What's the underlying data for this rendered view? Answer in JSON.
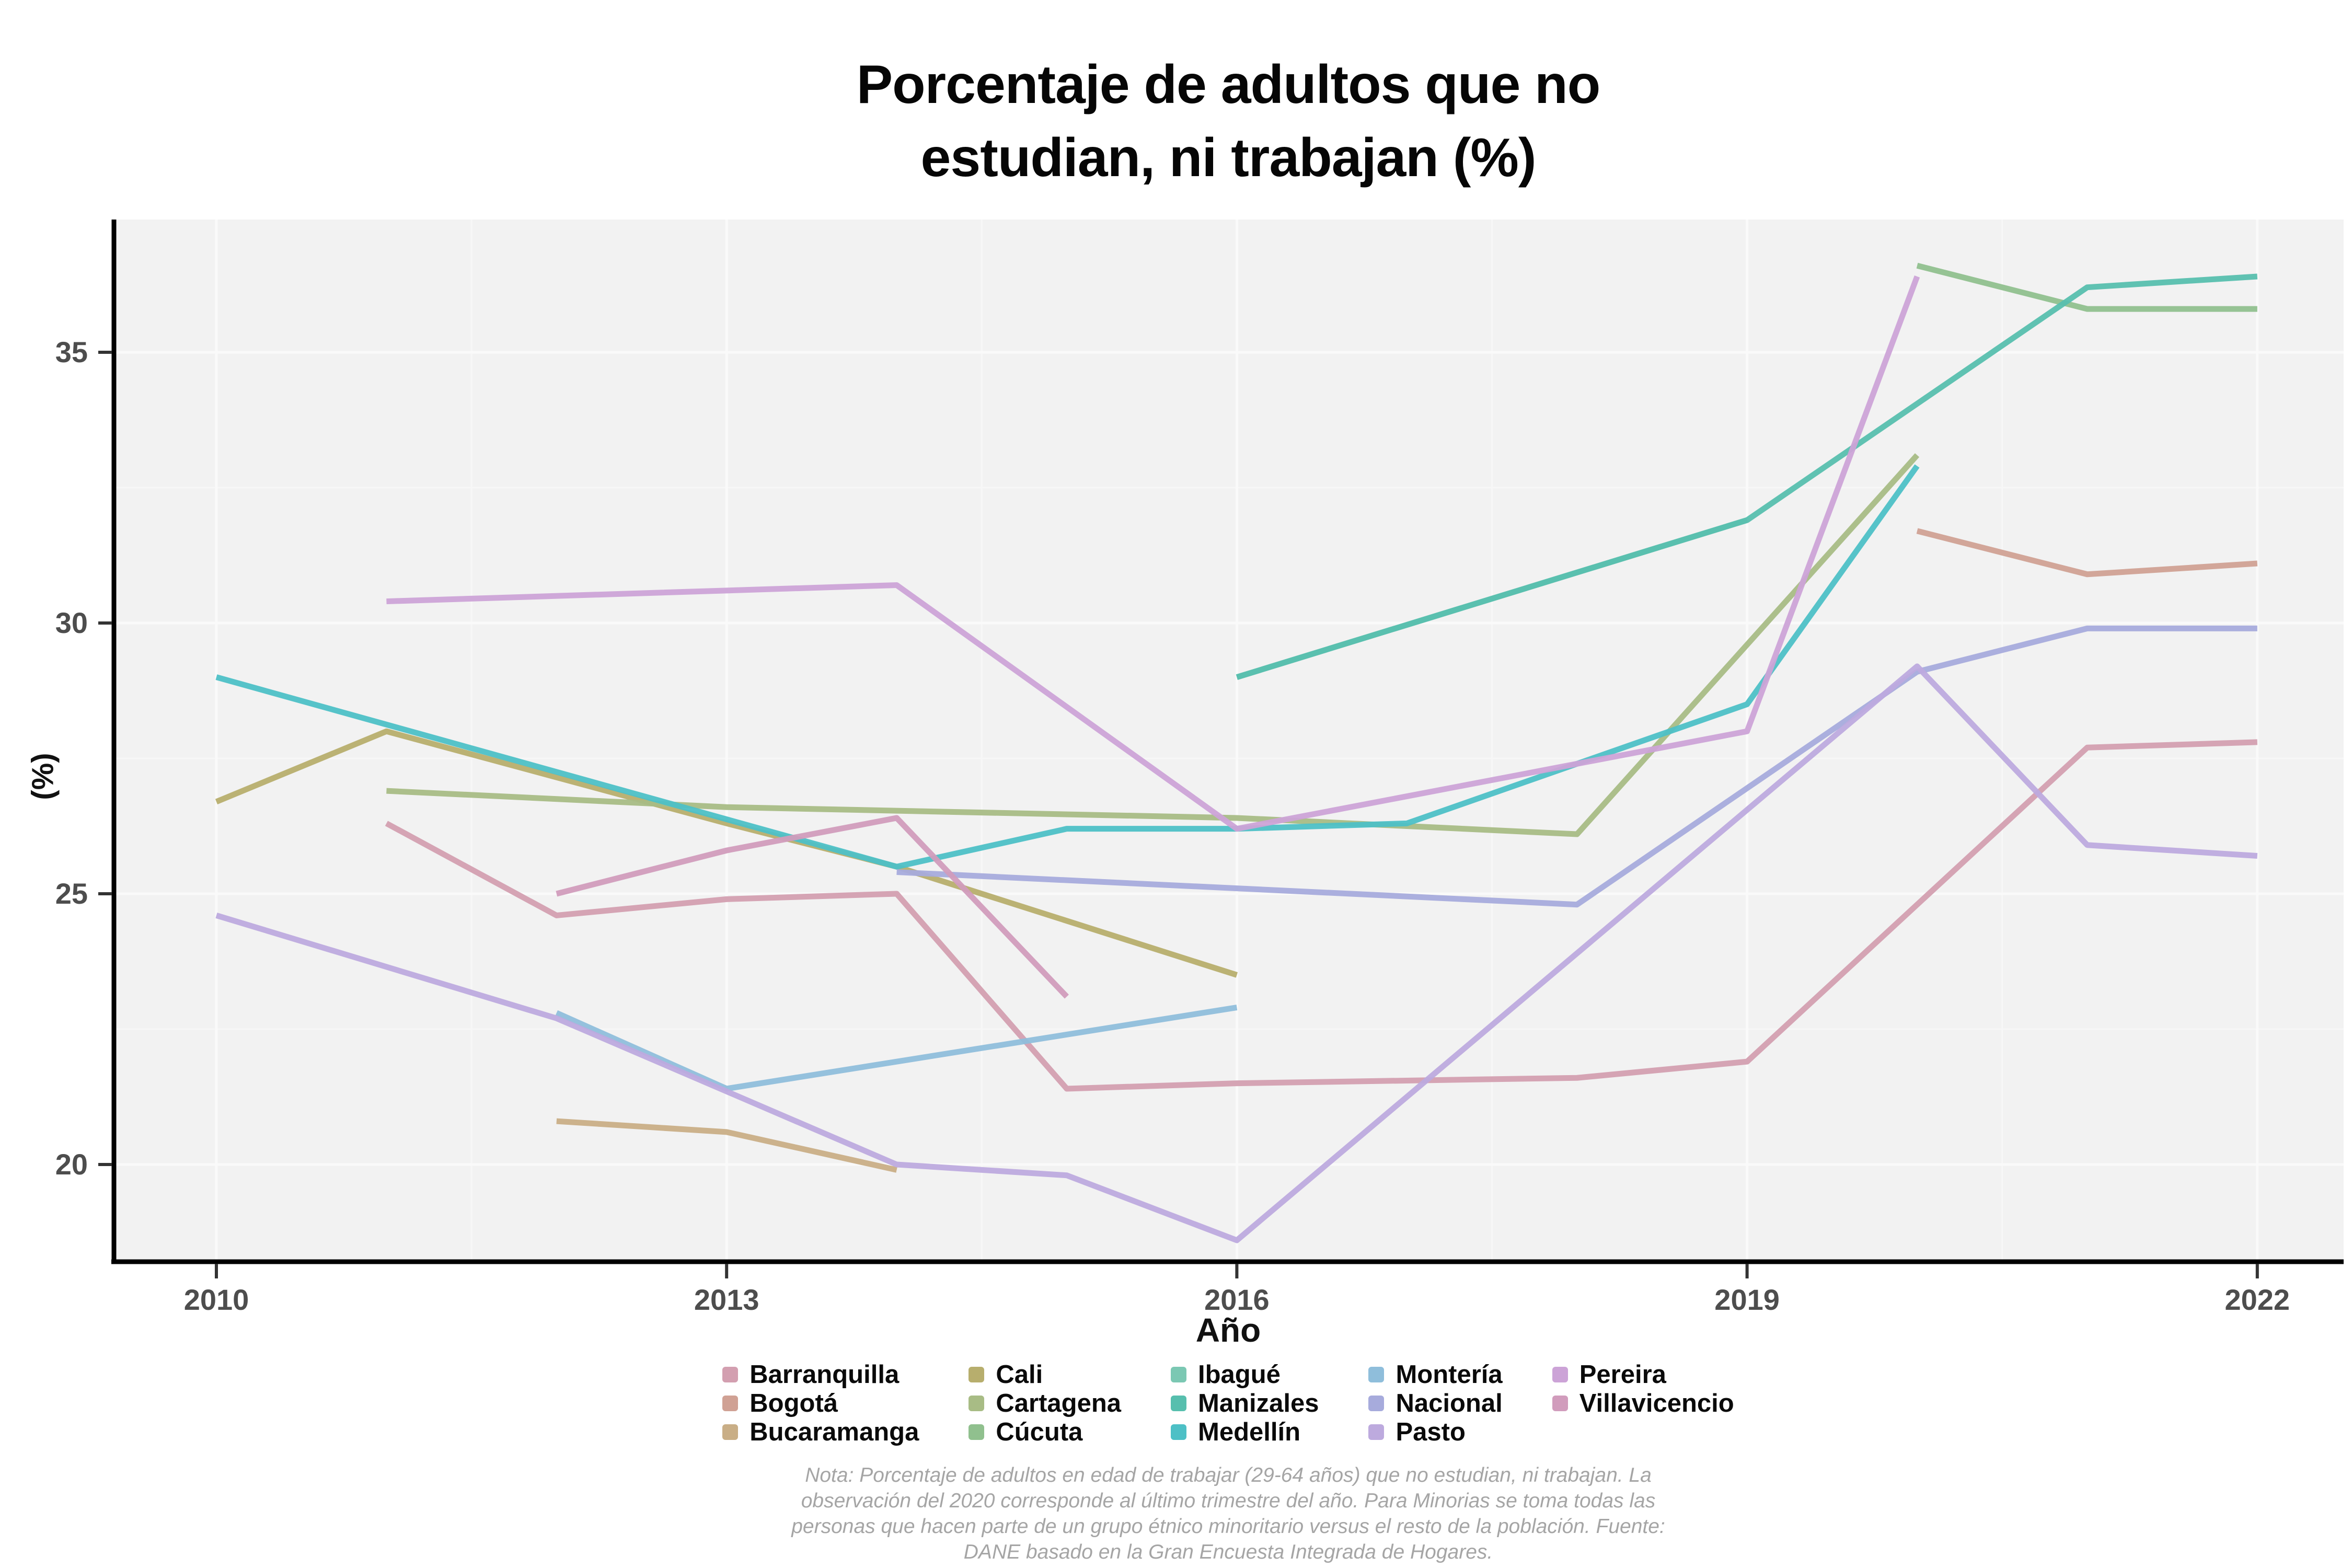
{
  "title": {
    "line1": "Porcentaje de adultos que no",
    "line2": "estudian, ni trabajan (%)"
  },
  "axes": {
    "x_label": "Año",
    "y_label": "(%)",
    "x_ticks": [
      2010,
      2013,
      2016,
      2019,
      2022
    ],
    "y_ticks": [
      20,
      25,
      30,
      35
    ]
  },
  "note": {
    "lines": [
      "Nota: Porcentaje de adultos en edad de trabajar (29-64 años) que no estudian, ni trabajan. La",
      "observación del 2020 corresponde al último trimestre del año. Para Minorias se toma todas las",
      "personas que hacen parte de un grupo étnico minoritario versus el resto de la población. Fuente:",
      "DANE basado en la Gran Encuesta Integrada de Hogares."
    ]
  },
  "colors": {
    "panel_bg": "#f2f2f2",
    "grid_major": "#fafafa",
    "grid_minor": "#f7f7f7",
    "axis_line": "#000000",
    "tick_mark": "#333333",
    "tick_text": "#4d4d4d"
  },
  "chart_data": {
    "type": "line",
    "title": "Porcentaje de adultos que no estudian, ni trabajan (%)",
    "xlabel": "Año",
    "ylabel": "(%)",
    "x_ticks": [
      2010,
      2013,
      2016,
      2019,
      2022
    ],
    "ylim": [
      18.3,
      37.5
    ],
    "xlim": [
      2009.4,
      2022.5
    ],
    "grid": true,
    "legend_position": "bottom",
    "series": [
      {
        "name": "Barranquilla",
        "color": "#d39fb0",
        "points": [
          [
            2011,
            26.3
          ],
          [
            2012,
            24.6
          ],
          [
            2013,
            24.9
          ],
          [
            2014,
            25.0
          ],
          [
            2015,
            21.4
          ],
          [
            2016,
            21.5
          ],
          [
            2018,
            21.6
          ],
          [
            2019,
            21.9
          ],
          [
            2021,
            27.7
          ],
          [
            2022,
            27.8
          ]
        ]
      },
      {
        "name": "Bogotá",
        "color": "#d0a194",
        "points": [
          [
            2020,
            31.7
          ],
          [
            2021,
            30.9
          ],
          [
            2022,
            31.1
          ]
        ]
      },
      {
        "name": "Bucaramanga",
        "color": "#c9ae86",
        "points": [
          [
            2012,
            20.8
          ],
          [
            2013,
            20.6
          ],
          [
            2014,
            19.9
          ]
        ]
      },
      {
        "name": "Cali",
        "color": "#b7ae6d",
        "points": [
          [
            2010,
            26.7
          ],
          [
            2011,
            28.0
          ],
          [
            2013,
            26.3
          ],
          [
            2014,
            25.5
          ],
          [
            2016,
            23.5
          ]
        ]
      },
      {
        "name": "Cartagena",
        "color": "#a8bc85",
        "points": [
          [
            2011,
            26.9
          ],
          [
            2013,
            26.6
          ],
          [
            2016,
            26.4
          ],
          [
            2018,
            26.1
          ],
          [
            2020,
            33.1
          ]
        ]
      },
      {
        "name": "Cúcuta",
        "color": "#90c08e",
        "points": [
          [
            2020,
            36.6
          ],
          [
            2021,
            35.8
          ],
          [
            2022,
            35.8
          ]
        ]
      },
      {
        "name": "Ibagué",
        "color": "#7bc8b3",
        "points": [
          [
            2016,
            29.0
          ],
          [
            2019,
            31.9
          ]
        ]
      },
      {
        "name": "Manizales",
        "color": "#57bfae",
        "points": [
          [
            2016,
            29.0
          ],
          [
            2019,
            31.9
          ],
          [
            2021,
            36.2
          ],
          [
            2022,
            36.4
          ]
        ]
      },
      {
        "name": "Medellín",
        "color": "#4dc0c6",
        "points": [
          [
            2010,
            29.0
          ],
          [
            2014,
            25.5
          ],
          [
            2015,
            26.2
          ],
          [
            2016,
            26.2
          ],
          [
            2017,
            26.3
          ],
          [
            2019,
            28.5
          ],
          [
            2020,
            32.9
          ]
        ]
      },
      {
        "name": "Montería",
        "color": "#8fbedb",
        "points": [
          [
            2012,
            22.8
          ],
          [
            2013,
            21.4
          ],
          [
            2016,
            22.9
          ]
        ]
      },
      {
        "name": "Nacional",
        "color": "#a7abdc",
        "points": [
          [
            2014,
            25.4
          ],
          [
            2016,
            25.1
          ],
          [
            2018,
            24.8
          ],
          [
            2020,
            29.1
          ],
          [
            2021,
            29.9
          ],
          [
            2022,
            29.9
          ]
        ]
      },
      {
        "name": "Pasto",
        "color": "#bdaade",
        "points": [
          [
            2010,
            24.6
          ],
          [
            2012,
            22.7
          ],
          [
            2014,
            20.0
          ],
          [
            2015,
            19.8
          ],
          [
            2016,
            18.6
          ],
          [
            2020,
            29.2
          ],
          [
            2021,
            25.9
          ],
          [
            2022,
            25.7
          ]
        ]
      },
      {
        "name": "Pereira",
        "color": "#cca3d7",
        "points": [
          [
            2011,
            30.4
          ],
          [
            2014,
            30.7
          ],
          [
            2016,
            26.2
          ],
          [
            2019,
            28.0
          ],
          [
            2020,
            36.4
          ]
        ]
      },
      {
        "name": "Villavicencio",
        "color": "#d19cbc",
        "points": [
          [
            2012,
            25.0
          ],
          [
            2013,
            25.8
          ],
          [
            2014,
            26.4
          ],
          [
            2015,
            23.1
          ]
        ]
      }
    ]
  }
}
